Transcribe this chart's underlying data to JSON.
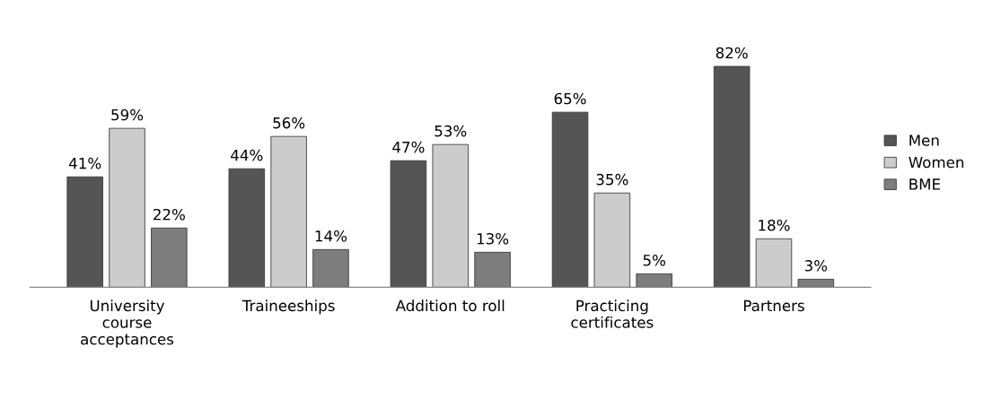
{
  "chart_data": {
    "type": "bar",
    "categories": [
      "University\ncourse\nacceptances",
      "Traineeships",
      "Addition to roll",
      "Practicing\ncertificates",
      "Partners"
    ],
    "series": [
      {
        "name": "Men",
        "color": "#555555",
        "values": [
          41,
          44,
          47,
          65,
          82
        ],
        "value_labels": [
          "41%",
          "44%",
          "47%",
          "65%",
          "82%"
        ]
      },
      {
        "name": "Women",
        "color": "#cccccc",
        "values": [
          59,
          56,
          53,
          35,
          18
        ],
        "value_labels": [
          "59%",
          "56%",
          "53%",
          "35%",
          "18%"
        ]
      },
      {
        "name": "BME",
        "color": "#7d7d7d",
        "values": [
          22,
          14,
          13,
          5,
          3
        ],
        "value_labels": [
          "22%",
          "14%",
          "13%",
          "5%",
          "3%"
        ]
      }
    ],
    "legend": "right"
  }
}
